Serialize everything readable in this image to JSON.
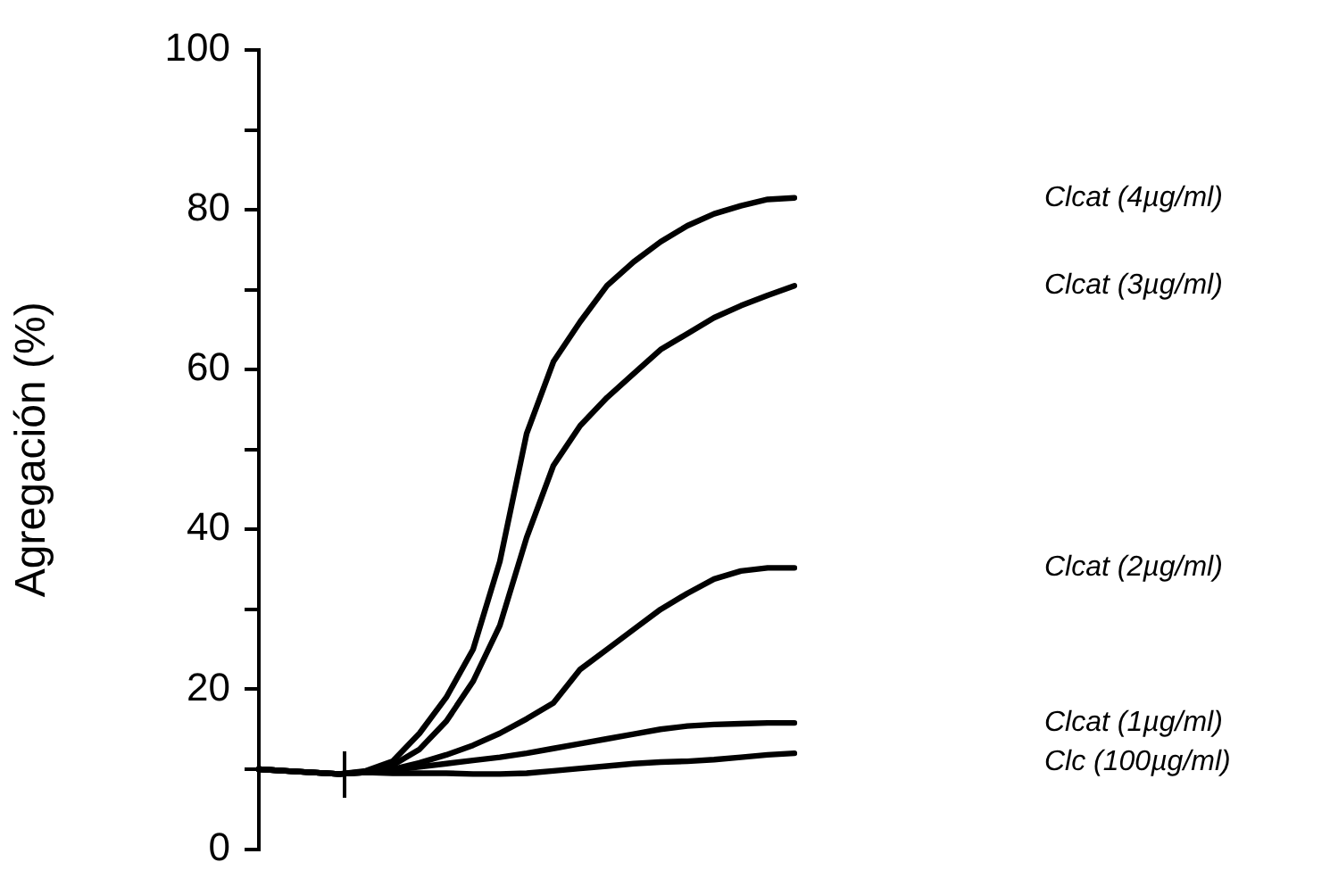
{
  "chart_data": {
    "type": "line",
    "ylabel": "Agregación (%)",
    "categories": [
      null,
      null,
      null,
      null,
      null,
      null,
      null,
      null,
      null,
      null,
      null,
      null,
      null,
      null,
      null,
      null,
      null,
      null,
      null,
      null,
      null
    ],
    "series": [
      {
        "name": "Clcat (4µg/ml)",
        "color": "#000000",
        "values": [
          10,
          9.8,
          9.6,
          9.4,
          9.8,
          11,
          14.5,
          19,
          25,
          36,
          52,
          61,
          66,
          70.5,
          73.5,
          76,
          78,
          79.5,
          80.5,
          81.3,
          81.5
        ]
      },
      {
        "name": "Clcat (3µg/ml)",
        "color": "#000000",
        "values": [
          10,
          9.8,
          9.6,
          9.4,
          9.7,
          10.5,
          12.5,
          16,
          21,
          28,
          39,
          48,
          53,
          56.5,
          59.5,
          62.5,
          64.5,
          66.5,
          68,
          69.3,
          70.5
        ]
      },
      {
        "name": "Clcat (2µg/ml)",
        "color": "#000000",
        "values": [
          10,
          9.8,
          9.6,
          9.4,
          9.6,
          10,
          10.8,
          11.8,
          13,
          14.5,
          16.3,
          18.3,
          22.5,
          25,
          27.5,
          30,
          32,
          33.8,
          34.8,
          35.2,
          35.2
        ]
      },
      {
        "name": "Clcat (1µg/ml)",
        "color": "#000000",
        "values": [
          10,
          9.8,
          9.6,
          9.4,
          9.6,
          9.9,
          10.3,
          10.7,
          11.1,
          11.5,
          12,
          12.6,
          13.2,
          13.8,
          14.4,
          15,
          15.4,
          15.6,
          15.7,
          15.8,
          15.8
        ]
      },
      {
        "name": "Clc (100µg/ml)",
        "color": "#000000",
        "values": [
          10,
          9.8,
          9.6,
          9.4,
          9.6,
          9.5,
          9.5,
          9.5,
          9.4,
          9.4,
          9.5,
          9.8,
          10.1,
          10.4,
          10.7,
          10.9,
          11,
          11.2,
          11.5,
          11.8,
          12
        ]
      }
    ],
    "ylim": [
      0,
      100
    ],
    "yticks": [
      0,
      {
        "value": 10,
        "label": null
      },
      20,
      {
        "value": 30,
        "label": null
      },
      40,
      {
        "value": 50,
        "label": null
      },
      60,
      {
        "value": 70,
        "label": null
      },
      80,
      {
        "value": 90,
        "label": null
      },
      100
    ],
    "tick_labels": "y",
    "grid": false,
    "legend": false,
    "marker": "none",
    "line_style": "solid"
  }
}
